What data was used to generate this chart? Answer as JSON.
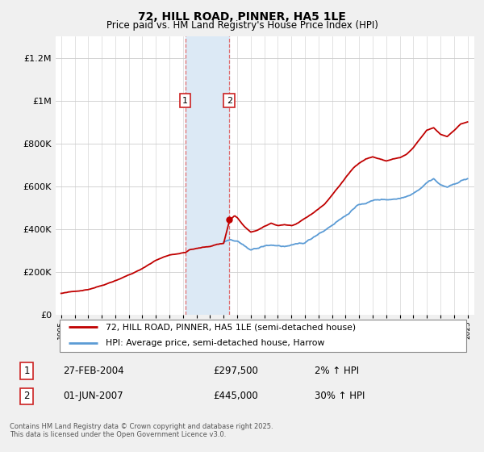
{
  "title": "72, HILL ROAD, PINNER, HA5 1LE",
  "subtitle": "Price paid vs. HM Land Registry's House Price Index (HPI)",
  "legend_line1": "72, HILL ROAD, PINNER, HA5 1LE (semi-detached house)",
  "legend_line2": "HPI: Average price, semi-detached house, Harrow",
  "transaction1_date": "27-FEB-2004",
  "transaction1_price": "£297,500",
  "transaction1_hpi": "2% ↑ HPI",
  "transaction2_date": "01-JUN-2007",
  "transaction2_price": "£445,000",
  "transaction2_hpi": "30% ↑ HPI",
  "footer": "Contains HM Land Registry data © Crown copyright and database right 2025.\nThis data is licensed under the Open Government Licence v3.0.",
  "hpi_color": "#5b9bd5",
  "price_color": "#c00000",
  "highlight_color": "#dce9f5",
  "vline_color": "#e06060",
  "marker1_x": 2004.16,
  "marker2_x": 2007.42,
  "ylim_max": 1300000,
  "xmin": 1994.6,
  "xmax": 2025.5,
  "background_color": "#f0f0f0",
  "plot_bg": "#ffffff",
  "grid_color": "#cccccc"
}
